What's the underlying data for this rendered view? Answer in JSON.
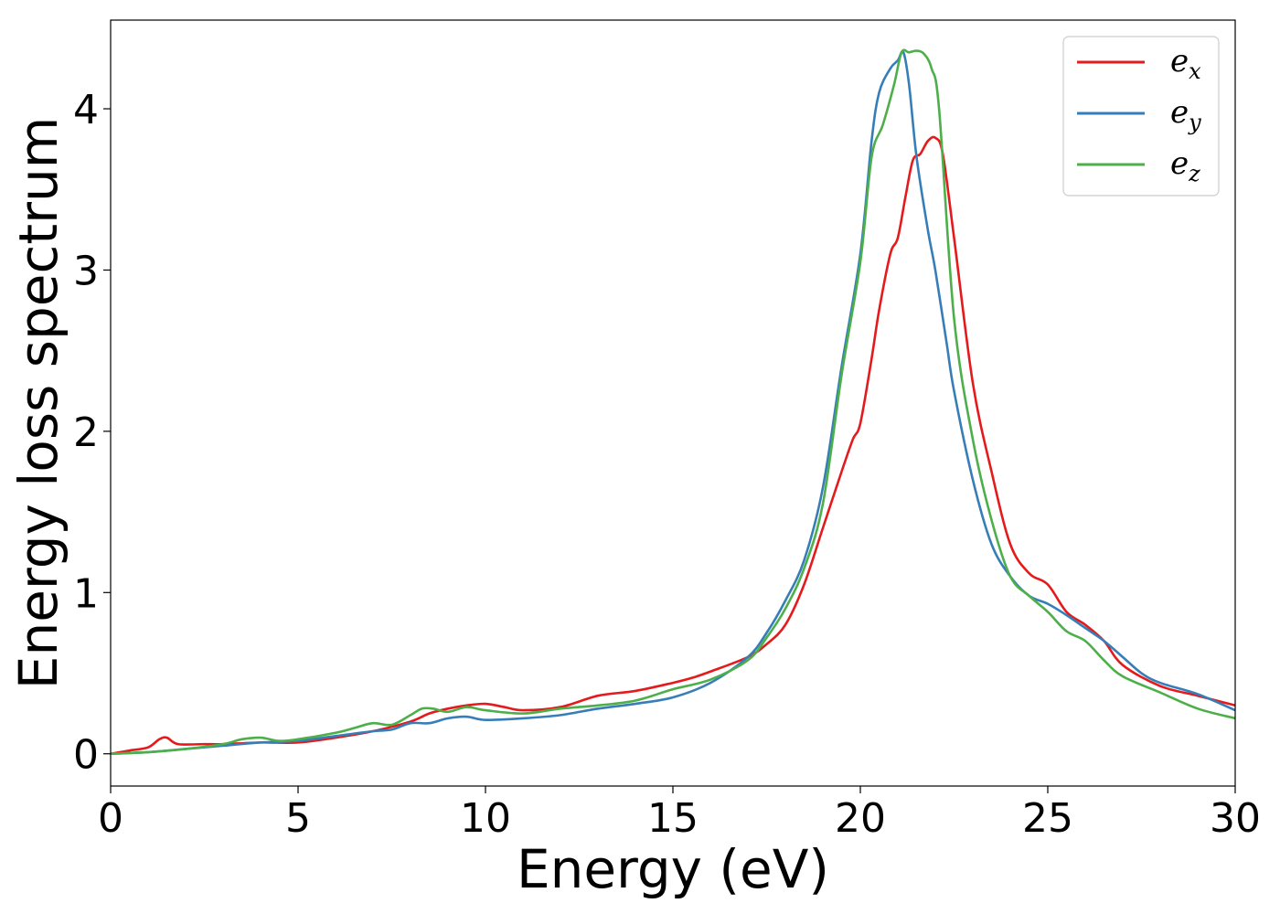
{
  "chart_data": {
    "type": "line",
    "xlabel": "Energy (eV)",
    "ylabel": "Energy loss spectrum",
    "xlim": [
      0,
      30
    ],
    "ylim": [
      -0.2,
      4.55
    ],
    "xticks": [
      0,
      5,
      10,
      15,
      20,
      25,
      30
    ],
    "yticks": [
      0,
      1,
      2,
      3,
      4
    ],
    "grid": false,
    "legend_position": "top-right",
    "series": [
      {
        "name": "e_x",
        "label_base": "e",
        "label_sub": "x",
        "color": "#e41a1c",
        "x": [
          0,
          0.5,
          1,
          1.3,
          1.5,
          1.8,
          2.5,
          3,
          4,
          5,
          6,
          7,
          8,
          8.5,
          9,
          9.5,
          10,
          10.5,
          11,
          12,
          13,
          14,
          15,
          15.5,
          16,
          17,
          17.5,
          18,
          18.5,
          19,
          19.5,
          19.8,
          20,
          20.3,
          20.5,
          20.8,
          21,
          21.2,
          21.4,
          21.6,
          21.8,
          22,
          22.2,
          22.5,
          23,
          23.5,
          24,
          24.5,
          25,
          25.5,
          26,
          26.5,
          27,
          28,
          29,
          30
        ],
        "y": [
          0,
          0.02,
          0.04,
          0.09,
          0.1,
          0.06,
          0.06,
          0.06,
          0.07,
          0.07,
          0.1,
          0.14,
          0.2,
          0.25,
          0.28,
          0.3,
          0.31,
          0.29,
          0.27,
          0.29,
          0.36,
          0.39,
          0.44,
          0.47,
          0.51,
          0.6,
          0.68,
          0.8,
          1.05,
          1.4,
          1.75,
          1.95,
          2.05,
          2.45,
          2.75,
          3.1,
          3.2,
          3.45,
          3.68,
          3.72,
          3.8,
          3.82,
          3.72,
          3.2,
          2.3,
          1.75,
          1.3,
          1.12,
          1.05,
          0.88,
          0.8,
          0.7,
          0.55,
          0.42,
          0.36,
          0.3
        ]
      },
      {
        "name": "e_y",
        "label_base": "e",
        "label_sub": "y",
        "color": "#377eb8",
        "x": [
          0,
          1,
          2,
          3,
          4,
          5,
          6,
          7,
          7.5,
          8,
          8.5,
          9,
          9.5,
          10,
          11,
          12,
          13,
          14,
          15,
          16,
          17,
          17.5,
          18,
          18.5,
          19,
          19.5,
          20,
          20.3,
          20.5,
          20.8,
          21,
          21.15,
          21.3,
          21.5,
          21.8,
          22,
          22.3,
          22.5,
          23,
          23.5,
          24,
          24.5,
          25,
          25.5,
          26,
          26.5,
          27,
          27.5,
          28,
          29,
          30
        ],
        "y": [
          0,
          0.01,
          0.03,
          0.05,
          0.07,
          0.08,
          0.11,
          0.14,
          0.15,
          0.19,
          0.19,
          0.22,
          0.23,
          0.21,
          0.22,
          0.24,
          0.28,
          0.31,
          0.35,
          0.44,
          0.6,
          0.75,
          0.95,
          1.2,
          1.65,
          2.4,
          3.1,
          3.8,
          4.1,
          4.25,
          4.3,
          4.35,
          4.15,
          3.7,
          3.25,
          3.0,
          2.55,
          2.25,
          1.7,
          1.3,
          1.1,
          0.98,
          0.93,
          0.86,
          0.78,
          0.7,
          0.6,
          0.5,
          0.44,
          0.37,
          0.27
        ]
      },
      {
        "name": "e_z",
        "label_base": "e",
        "label_sub": "z",
        "color": "#4daf4a",
        "x": [
          0,
          1,
          2,
          3,
          3.5,
          4,
          4.5,
          5,
          6,
          6.5,
          7,
          7.5,
          8,
          8.3,
          8.6,
          9,
          9.5,
          10,
          11,
          12,
          13,
          14,
          15,
          16,
          17,
          17.5,
          18,
          18.5,
          19,
          19.5,
          20,
          20.3,
          20.6,
          20.9,
          21.1,
          21.3,
          21.5,
          21.7,
          21.9,
          22.1,
          22.5,
          23,
          23.5,
          24,
          24.5,
          25,
          25.5,
          26,
          26.5,
          27,
          28,
          29,
          30
        ],
        "y": [
          0,
          0.01,
          0.03,
          0.06,
          0.09,
          0.1,
          0.08,
          0.09,
          0.13,
          0.16,
          0.19,
          0.18,
          0.24,
          0.28,
          0.28,
          0.26,
          0.29,
          0.27,
          0.25,
          0.28,
          0.3,
          0.33,
          0.4,
          0.46,
          0.58,
          0.72,
          0.9,
          1.15,
          1.55,
          2.35,
          3.05,
          3.7,
          3.9,
          4.15,
          4.35,
          4.35,
          4.36,
          4.34,
          4.25,
          4.0,
          2.7,
          1.95,
          1.45,
          1.1,
          0.98,
          0.88,
          0.76,
          0.7,
          0.58,
          0.48,
          0.38,
          0.28,
          0.22
        ]
      }
    ]
  }
}
